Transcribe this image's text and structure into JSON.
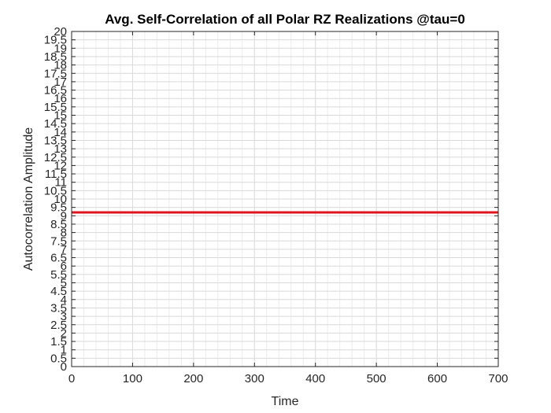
{
  "chart_data": {
    "type": "line",
    "title": "Avg. Self-Correlation of all Polar RZ Realizations @tau=0",
    "xlabel": "Time",
    "ylabel": "Autocorrelation Amplitude",
    "xlim": [
      0,
      700
    ],
    "ylim": [
      0,
      20
    ],
    "xticks": [
      0,
      100,
      200,
      300,
      400,
      500,
      600,
      700
    ],
    "yticks": [
      0,
      0.5,
      1,
      1.5,
      2,
      2.5,
      3,
      3.5,
      4,
      4.5,
      5,
      5.5,
      6,
      6.5,
      7,
      7.5,
      8,
      8.5,
      9,
      9.5,
      10,
      10.5,
      11,
      11.5,
      12,
      12.5,
      13,
      13.5,
      14,
      14.5,
      15,
      15.5,
      16,
      16.5,
      17,
      17.5,
      18,
      18.5,
      19,
      19.5,
      20
    ],
    "grid": true,
    "minor_grid": true,
    "series": [
      {
        "color": "#e0141e",
        "x": [
          0,
          700
        ],
        "y": [
          9.2,
          9.2
        ]
      }
    ]
  }
}
